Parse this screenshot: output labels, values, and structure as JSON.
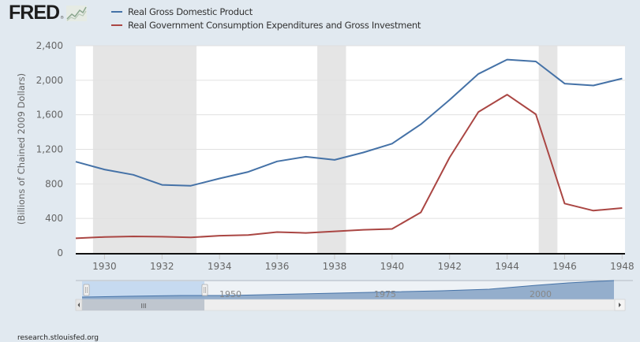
{
  "logo": {
    "text": "FRED",
    "reg": "®"
  },
  "footer": {
    "text": "research.stlouisfed.org"
  },
  "navigator": {
    "labels": [
      "1950",
      "1975",
      "2000"
    ],
    "scroll_left_icon": "arrow-left-icon",
    "scroll_right_icon": "arrow-right-icon",
    "handle_grip": "III"
  },
  "chart_data": {
    "type": "line",
    "title": "",
    "xlabel": "",
    "ylabel": "(Billions of Chained 2009 Dollars)",
    "x": [
      1929,
      1930,
      1931,
      1932,
      1933,
      1934,
      1935,
      1936,
      1937,
      1938,
      1939,
      1940,
      1941,
      1942,
      1943,
      1944,
      1945,
      1946,
      1947,
      1948
    ],
    "xlim": [
      1929,
      1948.1
    ],
    "ylim": [
      0,
      2400
    ],
    "yticks": [
      0,
      400,
      800,
      1200,
      1600,
      2000,
      2400
    ],
    "ytick_labels": [
      "0",
      "400",
      "800",
      "1,200",
      "1,600",
      "2,000",
      "2,400"
    ],
    "xticks": [
      1930,
      1932,
      1934,
      1936,
      1938,
      1940,
      1942,
      1944,
      1946,
      1948
    ],
    "xtick_labels": [
      "1930",
      "1932",
      "1934",
      "1936",
      "1938",
      "1940",
      "1942",
      "1944",
      "1946",
      "1948"
    ],
    "grid": true,
    "legend": "top-left",
    "recessions": [
      [
        1929.6,
        1933.2
      ],
      [
        1937.4,
        1938.4
      ],
      [
        1945.1,
        1945.75
      ]
    ],
    "series": [
      {
        "name": "Real Gross Domestic Product",
        "color": "#4572a7",
        "values": [
          1056.6,
          966.7,
          904.8,
          788.2,
          778.3,
          862.2,
          939.0,
          1060.5,
          1114.6,
          1077.7,
          1163.6,
          1266.1,
          1490.3,
          1771.8,
          2073.7,
          2239.4,
          2217.8,
          1960.9,
          1939.4,
          2020.0
        ]
      },
      {
        "name": "Real Government Consumption Expenditures and Gross Investment",
        "color": "#aa4643",
        "values": [
          170,
          185,
          192,
          188,
          180,
          200,
          208,
          242,
          232,
          250,
          268,
          278,
          470,
          1105,
          1633,
          1833,
          1606,
          572,
          490,
          520
        ]
      }
    ]
  }
}
